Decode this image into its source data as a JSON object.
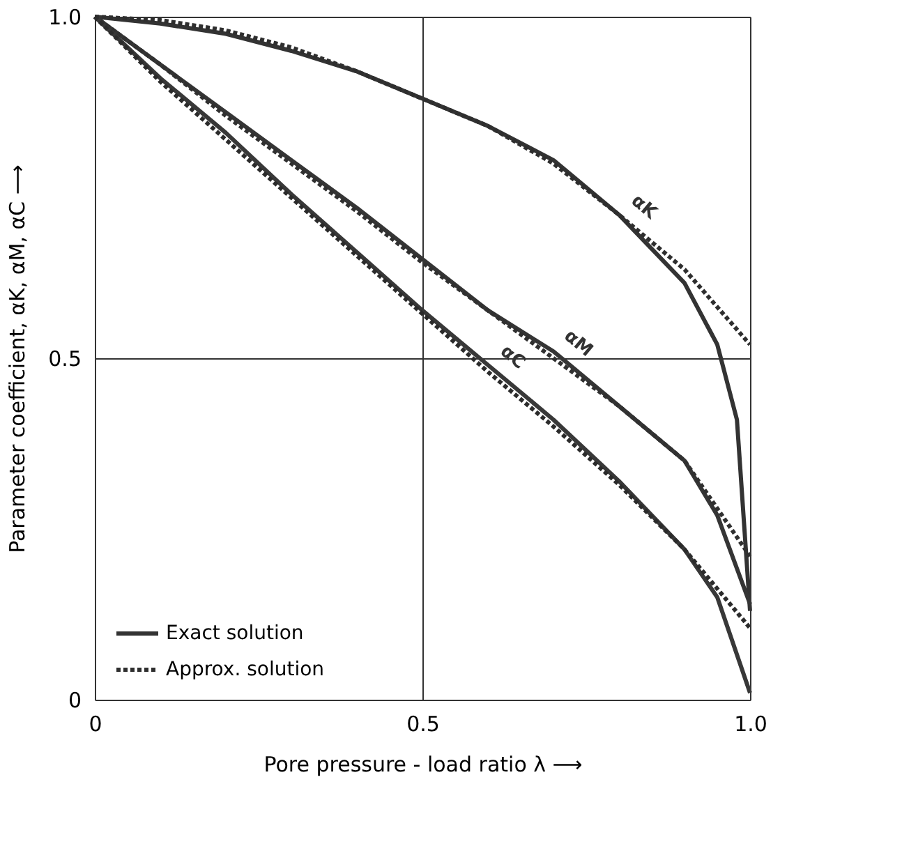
{
  "chart_data": {
    "type": "line",
    "xlabel": "Pore pressure - load ratio λ  ⟶",
    "ylabel": "Parameter coefficient, αK, αM, αC  ⟶",
    "xlim": [
      0,
      1
    ],
    "ylim": [
      0,
      1
    ],
    "xticks": [
      0,
      0.5,
      {
        "value": 1,
        "label": "1.0"
      }
    ],
    "yticks": [
      0,
      0.5,
      {
        "value": 1,
        "label": "1.0"
      }
    ],
    "grid": true,
    "legend": "bottom left",
    "series": [
      {
        "name": "Exact solution",
        "color": "#333333",
        "line_style": "solid",
        "x": [
          0,
          0.1,
          0.2,
          0.3,
          0.4,
          0.5,
          0.6,
          0.7,
          0.8,
          0.9,
          0.95,
          0.98,
          1
        ],
        "values": [
          1,
          0.99,
          0.975,
          0.95,
          0.92,
          0.88,
          0.84,
          0.79,
          0.71,
          0.61,
          0.52,
          0.41,
          0.13
        ]
      },
      {
        "name": "Approx. solution",
        "color": "#2e2e2e",
        "line_style": "dotted",
        "x": [
          0,
          0.1,
          0.2,
          0.3,
          0.4,
          0.5,
          0.6,
          0.7,
          0.8,
          0.9,
          1
        ],
        "values": [
          1,
          0.995,
          0.98,
          0.955,
          0.92,
          0.88,
          0.84,
          0.785,
          0.71,
          0.63,
          0.52
        ]
      },
      {
        "color": "#353535",
        "line_style": "solid",
        "x": [
          0,
          0.1,
          0.2,
          0.3,
          0.4,
          0.5,
          0.6,
          0.7,
          0.8,
          0.9,
          0.95,
          1
        ],
        "values": [
          1,
          0.93,
          0.86,
          0.79,
          0.72,
          0.645,
          0.57,
          0.51,
          0.43,
          0.35,
          0.27,
          0.14
        ]
      },
      {
        "color": "#303030",
        "line_style": "dotted",
        "x": [
          0,
          0.1,
          0.2,
          0.3,
          0.4,
          0.5,
          0.6,
          0.7,
          0.8,
          0.9,
          1
        ],
        "values": [
          1,
          0.93,
          0.855,
          0.785,
          0.715,
          0.64,
          0.57,
          0.5,
          0.43,
          0.35,
          0.21
        ]
      },
      {
        "color": "#383838",
        "line_style": "solid",
        "x": [
          0,
          0.1,
          0.2,
          0.3,
          0.4,
          0.5,
          0.6,
          0.7,
          0.8,
          0.9,
          0.95,
          1
        ],
        "values": [
          1,
          0.91,
          0.83,
          0.74,
          0.655,
          0.57,
          0.49,
          0.41,
          0.32,
          0.22,
          0.15,
          0.01
        ]
      },
      {
        "color": "#2b2b2b",
        "line_style": "dotted",
        "x": [
          0,
          0.1,
          0.2,
          0.3,
          0.4,
          0.5,
          0.6,
          0.7,
          0.8,
          0.9,
          1
        ],
        "values": [
          1,
          0.905,
          0.82,
          0.735,
          0.65,
          0.565,
          0.48,
          0.4,
          0.315,
          0.22,
          0.105
        ]
      }
    ],
    "annotations": [
      {
        "text": "αK",
        "x": 0.8,
        "y": 0.71
      },
      {
        "text": "αM",
        "x": 0.7,
        "y": 0.51
      },
      {
        "text": "αC",
        "x": 0.6,
        "y": 0.49
      }
    ]
  }
}
